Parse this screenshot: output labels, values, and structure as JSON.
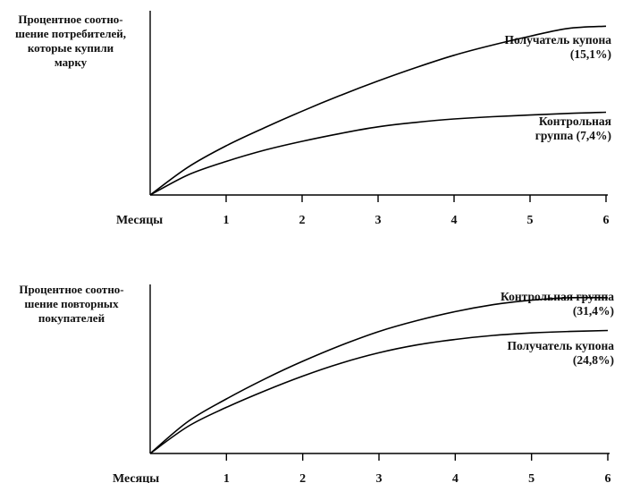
{
  "chart_data": [
    {
      "type": "line",
      "title": "",
      "ylabel": "Процентное соотно-\nшение потребителей,\nкоторые купили\nмарку",
      "xlabel": "Месяцы",
      "x": [
        0,
        0.5,
        1,
        1.5,
        2,
        2.5,
        3,
        3.5,
        4,
        4.5,
        5,
        5.5,
        6
      ],
      "xticks": [
        1,
        2,
        3,
        4,
        5,
        6
      ],
      "ylim": [
        0,
        16
      ],
      "grid": false,
      "series": [
        {
          "name": "Получатель купона (15,1%)",
          "values": [
            0,
            2.5,
            4.4,
            6.0,
            7.5,
            8.9,
            10.2,
            11.4,
            12.5,
            13.4,
            14.2,
            14.9,
            15.1
          ]
        },
        {
          "name": "Контрольная группа (7,4%)",
          "values": [
            0,
            1.8,
            3.0,
            4.0,
            4.8,
            5.5,
            6.1,
            6.5,
            6.8,
            7.0,
            7.15,
            7.3,
            7.4
          ]
        }
      ]
    },
    {
      "type": "line",
      "title": "",
      "ylabel": "Процентное соотно-\nшение повторных\nпокупателей",
      "xlabel": "Месяцы",
      "x": [
        0,
        0.5,
        1,
        1.5,
        2,
        2.5,
        3,
        3.5,
        4,
        4.5,
        5,
        5.5,
        6
      ],
      "xticks": [
        1,
        2,
        3,
        4,
        5,
        6
      ],
      "ylim": [
        0,
        33
      ],
      "grid": false,
      "series": [
        {
          "name": "Контрольная группа (31,4%)",
          "values": [
            0,
            6.5,
            11.0,
            15.0,
            18.6,
            21.8,
            24.6,
            26.8,
            28.6,
            30.0,
            30.9,
            31.4,
            31.4
          ]
        },
        {
          "name": "Получатель купона (24,8%)",
          "values": [
            0,
            5.5,
            9.3,
            12.6,
            15.6,
            18.2,
            20.3,
            21.9,
            23.0,
            23.8,
            24.3,
            24.6,
            24.8
          ]
        }
      ]
    }
  ]
}
